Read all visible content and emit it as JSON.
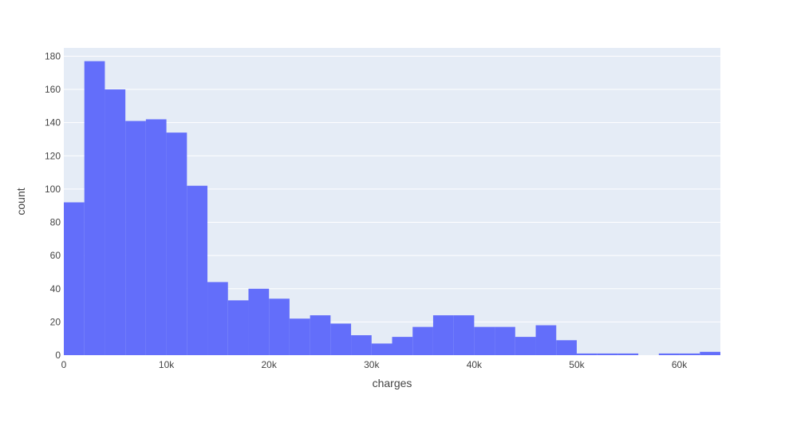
{
  "chart_data": {
    "type": "bar",
    "title": "",
    "xlabel": "charges",
    "ylabel": "count",
    "bin_width": 2000,
    "x_bin_start": [
      0,
      2000,
      4000,
      6000,
      8000,
      10000,
      12000,
      14000,
      16000,
      18000,
      20000,
      22000,
      24000,
      26000,
      28000,
      30000,
      32000,
      34000,
      36000,
      38000,
      40000,
      42000,
      44000,
      46000,
      48000,
      50000,
      52000,
      54000,
      56000,
      58000,
      60000,
      62000
    ],
    "values": [
      92,
      177,
      160,
      141,
      142,
      134,
      102,
      44,
      33,
      40,
      34,
      22,
      24,
      19,
      12,
      7,
      11,
      17,
      24,
      24,
      17,
      17,
      11,
      18,
      9,
      1,
      1,
      1,
      0,
      1,
      1,
      2
    ],
    "xlim": [
      0,
      64000
    ],
    "ylim": [
      0,
      185
    ],
    "x_ticks": [
      0,
      10000,
      20000,
      30000,
      40000,
      50000,
      60000
    ],
    "x_tick_labels": [
      "0",
      "10k",
      "20k",
      "30k",
      "40k",
      "50k",
      "60k"
    ],
    "y_ticks": [
      0,
      20,
      40,
      60,
      80,
      100,
      120,
      140,
      160,
      180
    ],
    "y_tick_labels": [
      "0",
      "20",
      "40",
      "60",
      "80",
      "100",
      "120",
      "140",
      "160",
      "180"
    ],
    "grid": true,
    "colors": {
      "bar": "#636efa",
      "plot_background": "#e5ecf6",
      "grid": "#ffffff",
      "text": "#444444"
    }
  }
}
